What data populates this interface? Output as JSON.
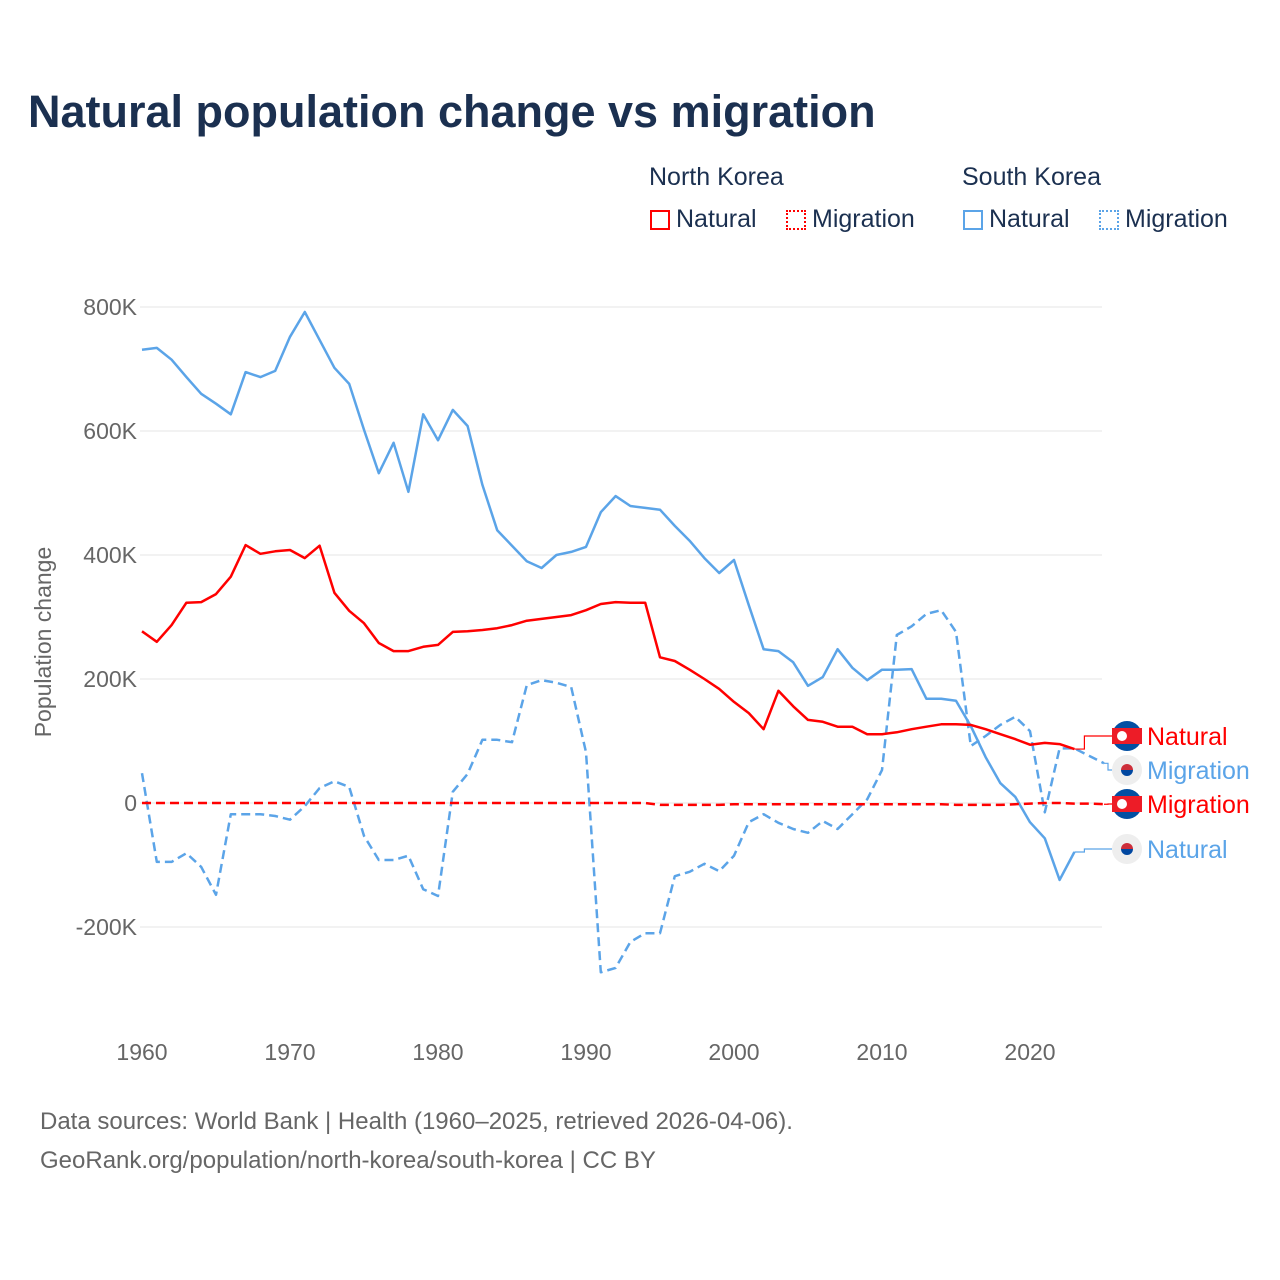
{
  "title": "Natural population change vs migration",
  "legend": {
    "groups": [
      {
        "name": "North Korea",
        "items": [
          {
            "label": "Natural",
            "style": "solid",
            "color": "#ff0000"
          },
          {
            "label": "Migration",
            "style": "dotted",
            "color": "#ff0000"
          }
        ]
      },
      {
        "name": "South Korea",
        "items": [
          {
            "label": "Natural",
            "style": "solid",
            "color": "#5ba4e8"
          },
          {
            "label": "Migration",
            "style": "dotted",
            "color": "#5ba4e8"
          }
        ]
      }
    ]
  },
  "footer": {
    "line1": "Data sources: World Bank | Health (1960–2025, retrieved 2026-04-06).",
    "line2": "GeoRank.org/population/north-korea/south-korea | CC BY"
  },
  "chart_data": {
    "type": "line",
    "title": "Natural population change vs migration",
    "xlabel": "",
    "ylabel": "Population change",
    "xlim": [
      1960,
      2025
    ],
    "ylim": [
      -300000,
      850000
    ],
    "x_ticks": [
      "1960",
      "1970",
      "1980",
      "1990",
      "2000",
      "2010",
      "2020"
    ],
    "y_ticks": [
      {
        "v": -200000,
        "label": "-200K"
      },
      {
        "v": 0,
        "label": "0"
      },
      {
        "v": 200000,
        "label": "200K"
      },
      {
        "v": 400000,
        "label": "400K"
      },
      {
        "v": 600000,
        "label": "600K"
      },
      {
        "v": 800000,
        "label": "800K"
      }
    ],
    "grid": true,
    "start_year": 1960,
    "series": [
      {
        "name": "South Korea Natural",
        "end_label": "Natural",
        "country": "south-korea",
        "color": "#5ba4e8",
        "dash": false,
        "values_k": [
          731,
          734,
          715,
          687,
          660,
          644,
          627,
          695,
          687,
          697,
          752,
          792,
          747,
          702,
          676,
          602,
          532,
          581,
          502,
          627,
          585,
          634,
          608,
          513,
          440,
          415,
          390,
          379,
          400,
          405,
          413,
          469,
          495,
          479,
          476,
          473,
          447,
          423,
          395,
          371,
          392,
          319,
          248,
          245,
          227,
          189,
          203,
          248,
          218,
          198,
          215,
          215,
          216,
          168,
          168,
          165,
          124,
          74,
          32,
          10,
          -31,
          -57,
          -124,
          -79
        ]
      },
      {
        "name": "North Korea Natural",
        "end_label": "Natural",
        "country": "north-korea",
        "color": "#ff0000",
        "dash": false,
        "values_k": [
          277,
          260,
          287,
          323,
          324,
          337,
          365,
          416,
          402,
          406,
          408,
          395,
          415,
          339,
          310,
          290,
          258,
          245,
          245,
          252,
          255,
          276,
          277,
          279,
          282,
          287,
          294,
          297,
          300,
          303,
          311,
          321,
          324,
          323,
          323,
          235,
          229,
          215,
          200,
          184,
          163,
          145,
          119,
          181,
          156,
          134,
          131,
          123,
          123,
          111,
          111,
          114,
          119,
          123,
          127,
          127,
          126,
          119,
          111,
          103,
          94,
          97,
          95,
          87
        ]
      },
      {
        "name": "South Korea Migration",
        "end_label": "Migration",
        "country": "south-korea",
        "color": "#5ba4e8",
        "dash": true,
        "values_k": [
          48,
          -95,
          -95,
          -81,
          -103,
          -148,
          -18,
          -18,
          -18,
          -21,
          -27,
          -5,
          24,
          35,
          26,
          -53,
          -92,
          -92,
          -85,
          -139,
          -150,
          18,
          47,
          102,
          102,
          98,
          190,
          198,
          194,
          187,
          82,
          -273,
          -266,
          -224,
          -210,
          -210,
          -118,
          -111,
          -98,
          -110,
          -85,
          -31,
          -18,
          -32,
          -42,
          -48,
          -29,
          -42,
          -18,
          6,
          53,
          271,
          285,
          305,
          311,
          276,
          92,
          108,
          126,
          139,
          116,
          -15,
          88,
          88,
          76,
          64
        ]
      },
      {
        "name": "North Korea Migration",
        "end_label": "Migration",
        "country": "north-korea",
        "color": "#ff0000",
        "dash": true,
        "values_k": [
          0,
          0,
          0,
          0,
          0,
          0,
          0,
          0,
          0,
          0,
          0,
          0,
          0,
          0,
          0,
          0,
          0,
          0,
          0,
          0,
          0,
          0,
          0,
          0,
          0,
          0,
          0,
          0,
          0,
          0,
          0,
          0,
          0,
          0,
          0,
          -3,
          -3,
          -3,
          -3,
          -3,
          -2,
          -2,
          -2,
          -2,
          -2,
          -2,
          -2,
          -2,
          -2,
          -2,
          -2,
          -2,
          -2,
          -2,
          -2,
          -3,
          -3,
          -3,
          -3,
          -2,
          -1,
          0,
          0,
          -1,
          -1,
          -2
        ]
      }
    ],
    "end_labels_order": [
      1,
      2,
      3,
      0
    ]
  }
}
